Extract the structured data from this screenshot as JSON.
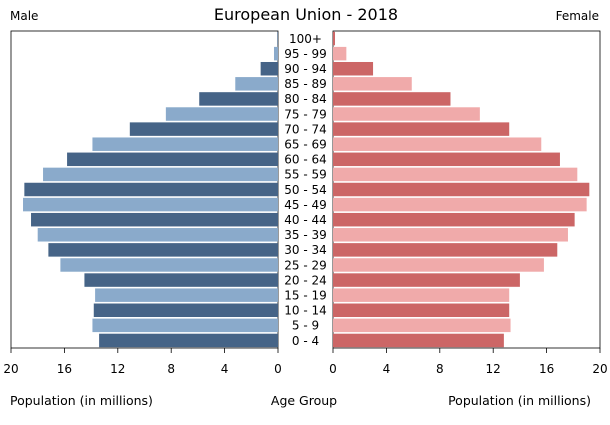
{
  "chart_data": {
    "type": "bar",
    "orientation": "horizontal-diverging",
    "title": "European Union - 2018",
    "left_label": "Male",
    "right_label": "Female",
    "xlabel_left": "Population (in millions)",
    "xlabel_center": "Age Group",
    "xlabel_right": "Population (in millions)",
    "xlim": [
      0,
      20
    ],
    "xticks": [
      0,
      4,
      8,
      12,
      16,
      20
    ],
    "categories": [
      "0 - 4",
      "5 - 9",
      "10 - 14",
      "15 - 19",
      "20 - 24",
      "25 - 29",
      "30 - 34",
      "35 - 39",
      "40 - 44",
      "45 - 49",
      "50 - 54",
      "55 - 59",
      "60 - 64",
      "65 - 69",
      "70 - 74",
      "75 - 79",
      "80 - 84",
      "85 - 89",
      "90 - 94",
      "95 - 99",
      "100+"
    ],
    "series": [
      {
        "name": "Male",
        "values": [
          13.4,
          13.9,
          13.8,
          13.7,
          14.5,
          16.3,
          17.2,
          18.0,
          18.5,
          19.1,
          19.0,
          17.6,
          15.8,
          13.9,
          11.1,
          8.4,
          5.9,
          3.2,
          1.3,
          0.3,
          0.05
        ],
        "colors": [
          "#466487",
          "#8aaacb"
        ]
      },
      {
        "name": "Female",
        "values": [
          12.8,
          13.3,
          13.2,
          13.2,
          14.0,
          15.8,
          16.8,
          17.6,
          18.1,
          19.0,
          19.2,
          18.3,
          17.0,
          15.6,
          13.2,
          11.0,
          8.8,
          5.9,
          3.0,
          1.0,
          0.15
        ],
        "colors": [
          "#cc6666",
          "#f0aaaa"
        ]
      }
    ],
    "grid": false
  }
}
